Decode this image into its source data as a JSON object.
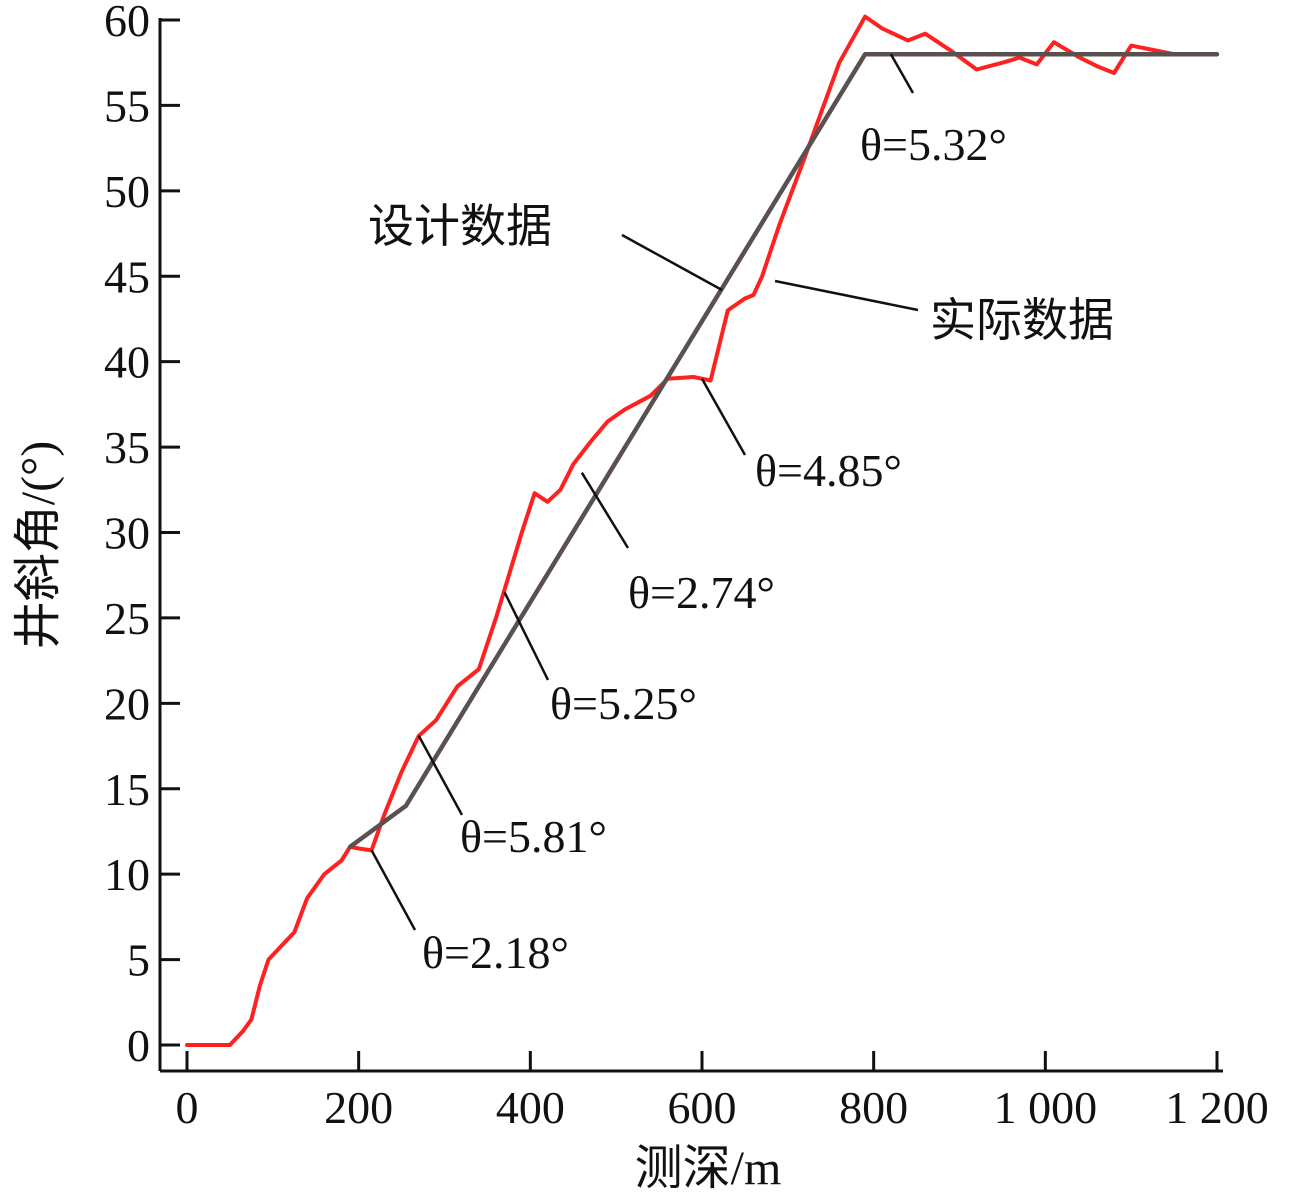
{
  "chart_data": {
    "type": "line",
    "xlabel": "测深/m",
    "ylabel": "井斜角/(°)",
    "xlim": [
      0,
      1200
    ],
    "ylim": [
      0,
      60
    ],
    "x_ticks": [
      "0",
      "200",
      "400",
      "600",
      "800",
      "1 000",
      "1 200"
    ],
    "y_ticks": [
      "0",
      "5",
      "10",
      "15",
      "20",
      "25",
      "30",
      "35",
      "40",
      "45",
      "50",
      "55",
      "60"
    ],
    "grid": false,
    "series": [
      {
        "name": "设计数据",
        "color": "#5a5050",
        "x": [
          190,
          255,
          790,
          1200
        ],
        "y": [
          11.6,
          14,
          58,
          58
        ]
      },
      {
        "name": "实际数据",
        "color": "#ff2020",
        "x": [
          0,
          50,
          65,
          75,
          85,
          95,
          110,
          125,
          140,
          160,
          180,
          190,
          200,
          215,
          230,
          250,
          270,
          290,
          315,
          340,
          360,
          375,
          390,
          405,
          420,
          435,
          450,
          470,
          490,
          510,
          540,
          560,
          590,
          610,
          630,
          650,
          660,
          670,
          690,
          720,
          760,
          790,
          810,
          840,
          860,
          890,
          920,
          950,
          970,
          990,
          1010,
          1040,
          1060,
          1080,
          1100,
          1120,
          1150,
          1200
        ],
        "y": [
          0,
          0,
          0.8,
          1.5,
          3.5,
          5,
          5.8,
          6.6,
          8.6,
          10,
          10.8,
          11.6,
          11.5,
          11.4,
          13.5,
          16,
          18.1,
          19,
          21,
          22,
          25,
          27.5,
          30,
          32.3,
          31.8,
          32.5,
          34,
          35.3,
          36.5,
          37.2,
          38,
          39,
          39.1,
          38.9,
          43,
          43.7,
          43.9,
          45,
          48,
          52,
          57.5,
          60.2,
          59.5,
          58.8,
          59.2,
          58.2,
          57.1,
          57.5,
          57.8,
          57.4,
          58.7,
          57.8,
          57.3,
          56.9,
          58.5,
          58.3,
          58,
          58
        ]
      }
    ],
    "series_labels": {
      "design": "设计数据",
      "actual": "实际数据"
    },
    "annotations": [
      {
        "text": "θ=2.18°",
        "x": 215,
        "y": 11.4
      },
      {
        "text": "θ=5.81°",
        "x": 270,
        "y": 18.1
      },
      {
        "text": "θ=5.25°",
        "x": 370,
        "y": 26.5
      },
      {
        "text": "θ=2.74°",
        "x": 460,
        "y": 33.5
      },
      {
        "text": "θ=4.85°",
        "x": 600,
        "y": 39.0
      },
      {
        "text": "θ=5.32°",
        "x": 820,
        "y": 58.0
      }
    ]
  }
}
